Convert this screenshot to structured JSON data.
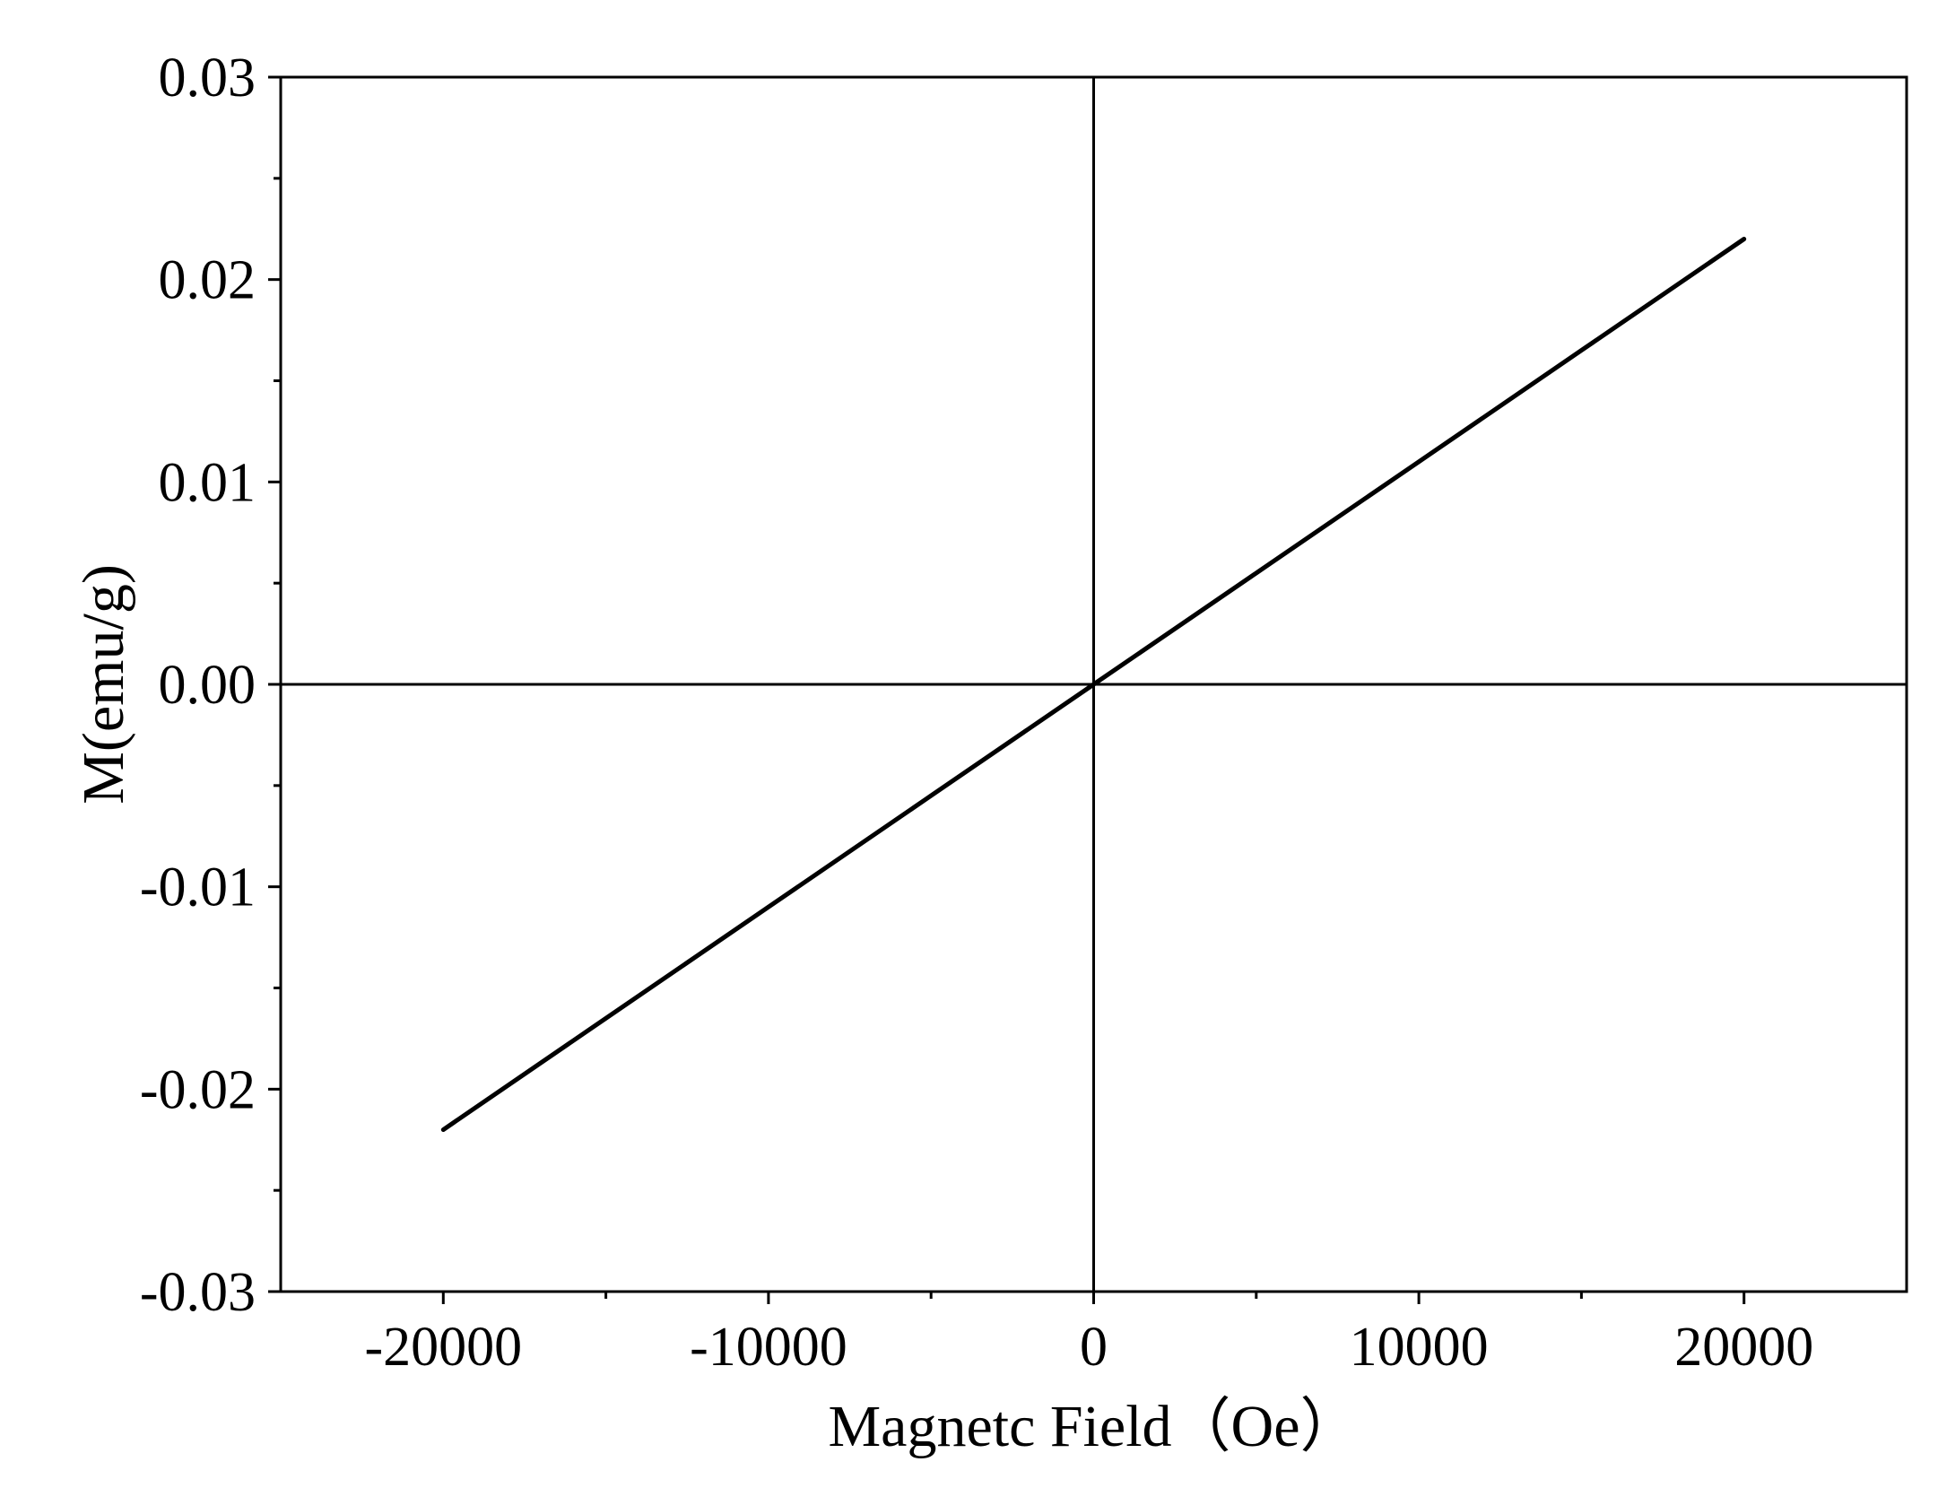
{
  "chart_data": {
    "type": "line",
    "title": "",
    "xlabel": "Magnetc Field（Oe）",
    "ylabel": "M(emu/g)",
    "xlim": [
      -25000,
      25000
    ],
    "ylim": [
      -0.03,
      0.03
    ],
    "x_ticks": [
      -20000,
      -10000,
      0,
      10000,
      20000
    ],
    "x_tick_labels": [
      "-20000",
      "-10000",
      "0",
      "10000",
      "20000"
    ],
    "x_minor_ticks": [
      -15000,
      -5000,
      5000,
      15000
    ],
    "y_ticks": [
      -0.03,
      -0.02,
      -0.01,
      0.0,
      0.01,
      0.02,
      0.03
    ],
    "y_tick_labels": [
      "-0.03",
      "-0.02",
      "-0.01",
      "0.00",
      "0.01",
      "0.02",
      "0.03"
    ],
    "y_minor_ticks": [
      -0.025,
      -0.015,
      -0.005,
      0.005,
      0.015,
      0.025
    ],
    "grid": false,
    "zero_lines": true,
    "legend": "none",
    "series": [
      {
        "color": "#000000",
        "x": [
          -20000,
          -15000,
          -10000,
          -5000,
          0,
          5000,
          10000,
          15000,
          20000
        ],
        "y": [
          -0.022,
          -0.0165,
          -0.011,
          -0.0055,
          0.0,
          0.0055,
          0.011,
          0.0165,
          0.022
        ]
      }
    ]
  }
}
